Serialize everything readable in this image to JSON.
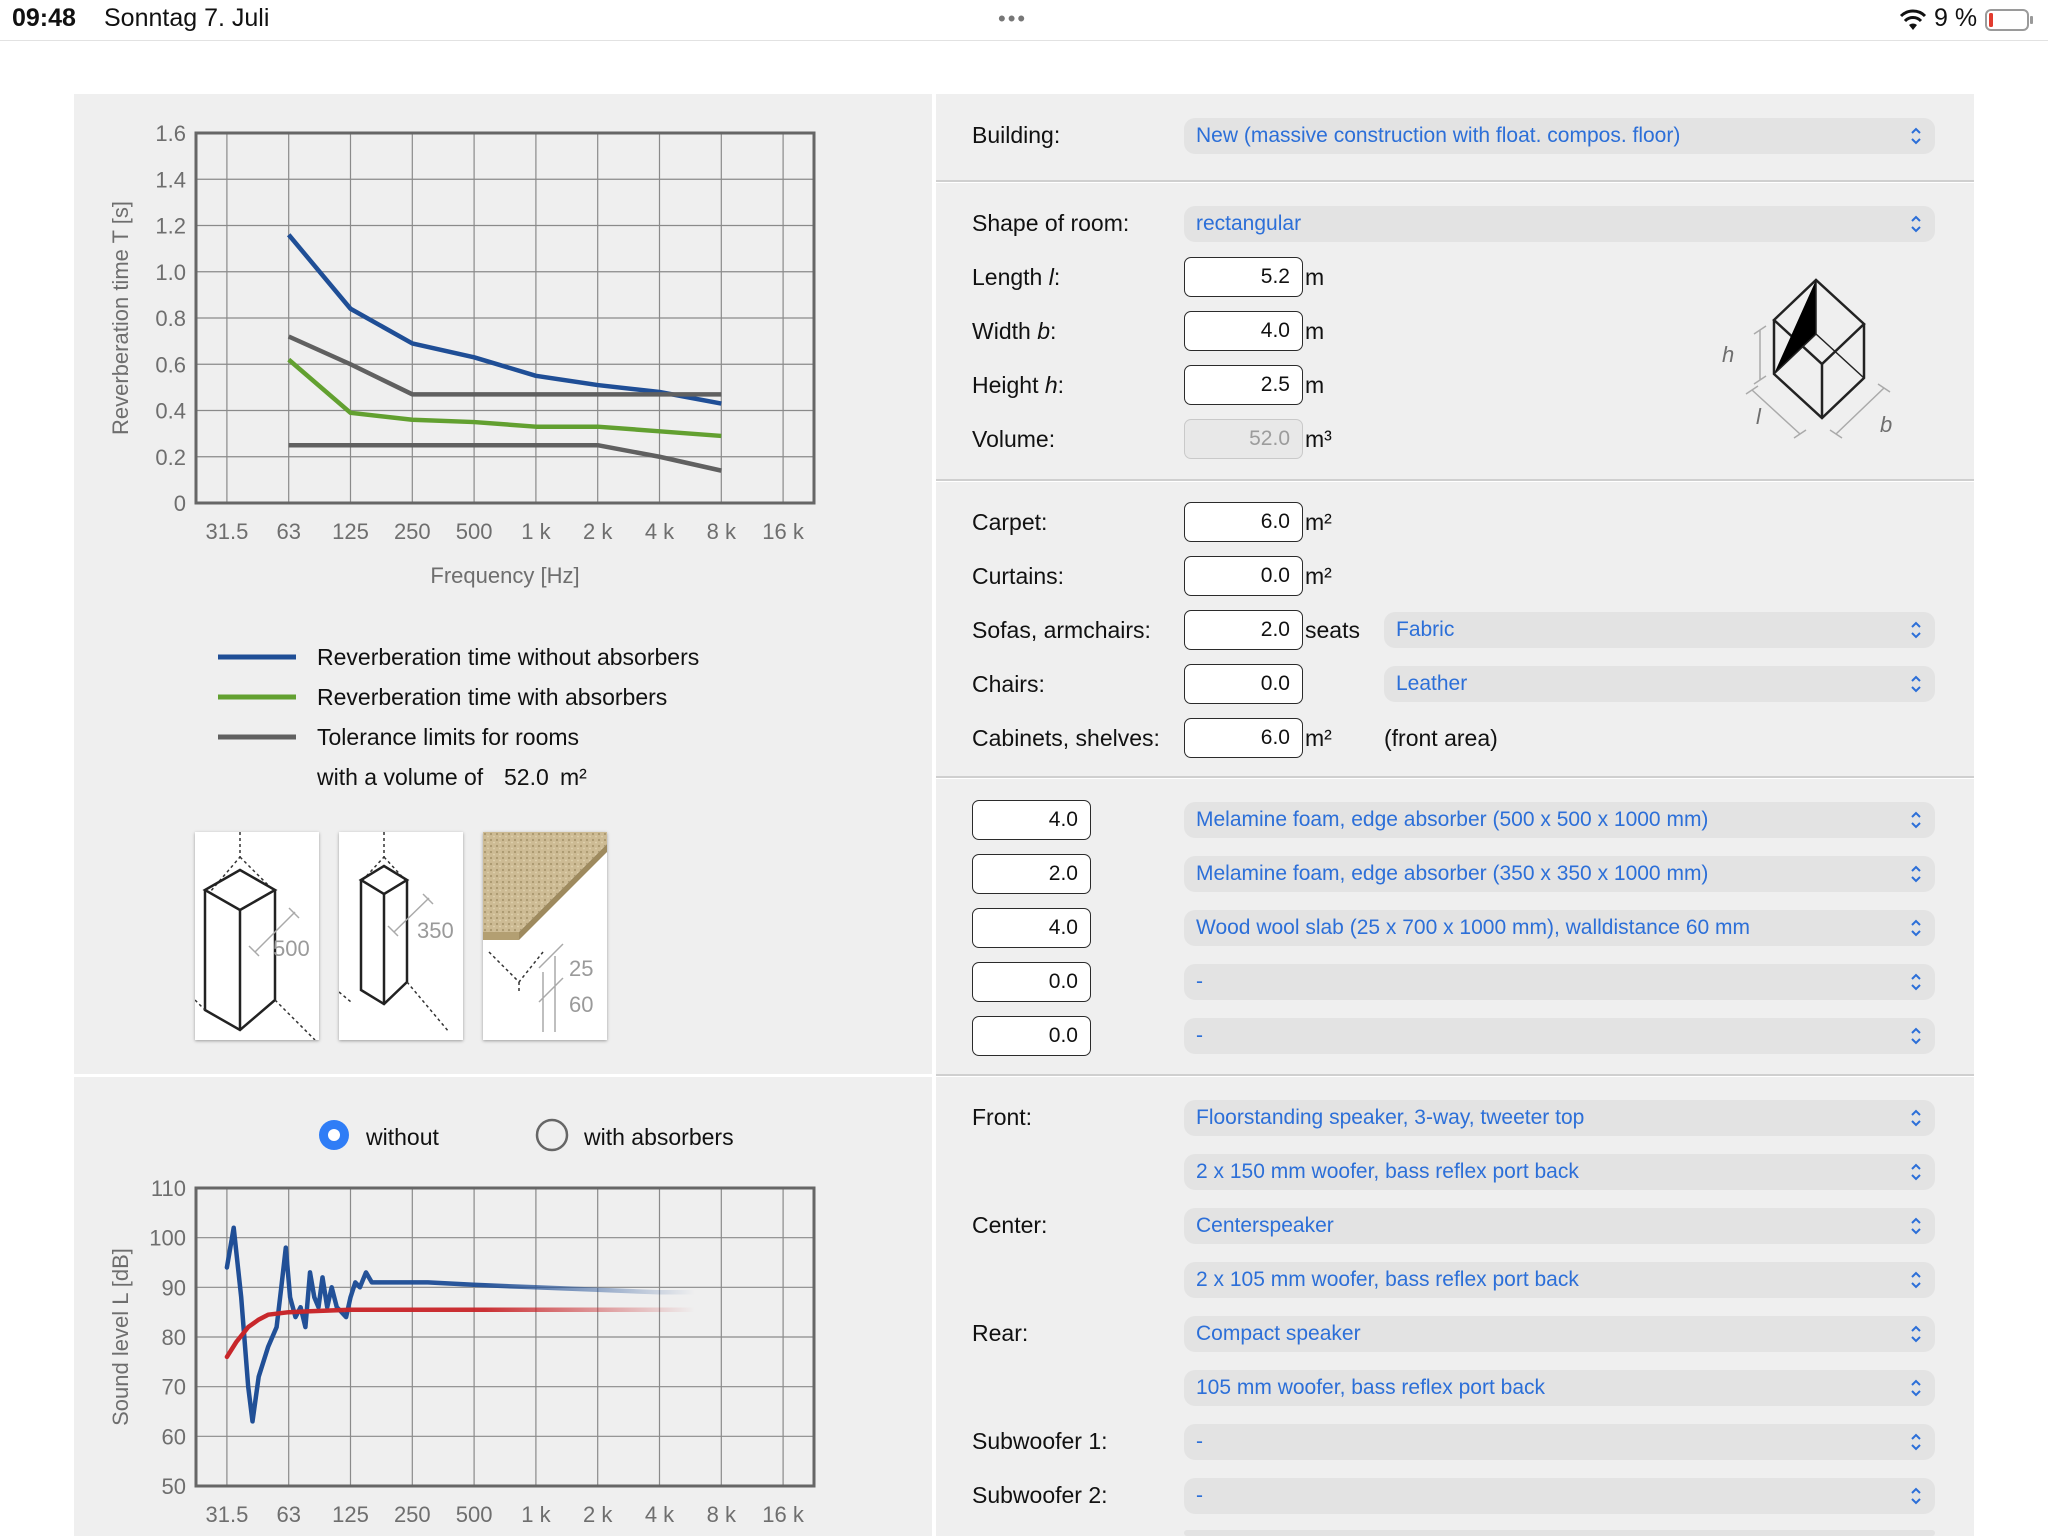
{
  "statusbar": {
    "time": "09:48",
    "date": "Sonntag 7. Juli",
    "battery": "9 %"
  },
  "chart_data": [
    {
      "type": "line",
      "x": [
        "31.5",
        "63",
        "125",
        "250",
        "500",
        "1 k",
        "2 k",
        "4 k",
        "8 k",
        "16 k"
      ],
      "xlabel": "Frequency [Hz]",
      "ylabel": "Reverberation time T [s]",
      "ylim": [
        0,
        1.6
      ],
      "yticks": [
        "0",
        "0.2",
        "0.4",
        "0.6",
        "0.8",
        "1.0",
        "1.2",
        "1.4",
        "1.6"
      ],
      "grid": true,
      "series": [
        {
          "name": "Reverberation time without absorbers",
          "color": "#1f4e96",
          "x": [
            "63",
            "125",
            "250",
            "500",
            "1 k",
            "2 k",
            "4 k",
            "8 k"
          ],
          "values": [
            1.16,
            0.84,
            0.69,
            0.63,
            0.55,
            0.51,
            0.48,
            0.43
          ]
        },
        {
          "name": "Reverberation time with absorbers",
          "color": "#62a030",
          "x": [
            "63",
            "125",
            "250",
            "500",
            "1 k",
            "2 k",
            "4 k",
            "8 k"
          ],
          "values": [
            0.62,
            0.39,
            0.36,
            0.35,
            0.33,
            0.33,
            0.31,
            0.29
          ]
        },
        {
          "name": "Tolerance limits for rooms",
          "color": "#606060",
          "x": [
            "63",
            "125",
            "250",
            "500",
            "1 k",
            "2 k",
            "4 k",
            "8 k"
          ],
          "values": [
            0.72,
            0.6,
            0.47,
            0.47,
            0.47,
            0.47,
            0.47,
            0.47
          ]
        },
        {
          "name": "Tolerance limits for rooms",
          "color": "#606060",
          "x": [
            "63",
            "125",
            "250",
            "500",
            "1 k",
            "2 k",
            "4 k",
            "8 k"
          ],
          "values": [
            0.25,
            0.25,
            0.25,
            0.25,
            0.25,
            0.25,
            0.2,
            0.14
          ]
        }
      ]
    },
    {
      "type": "line",
      "x": [
        "31.5",
        "63",
        "125",
        "250",
        "500",
        "1 k",
        "2 k",
        "4 k",
        "8 k",
        "16 k"
      ],
      "xlabel": "Frequency [Hz]",
      "ylabel": "Sound level L [dB]",
      "ylim": [
        50,
        110
      ],
      "yticks": [
        "50",
        "60",
        "70",
        "80",
        "90",
        "100",
        "110"
      ],
      "grid": true,
      "series": [
        {
          "name": "without",
          "color": "#1f4e96",
          "points": [
            [
              31.5,
              94
            ],
            [
              34,
              102
            ],
            [
              37,
              88
            ],
            [
              40,
              70
            ],
            [
              42,
              63
            ],
            [
              45,
              72
            ],
            [
              50,
              78
            ],
            [
              55,
              82
            ],
            [
              58,
              90
            ],
            [
              61,
              98
            ],
            [
              64,
              88
            ],
            [
              68,
              84
            ],
            [
              72,
              86
            ],
            [
              76,
              82
            ],
            [
              80,
              93
            ],
            [
              84,
              88
            ],
            [
              88,
              86
            ],
            [
              92,
              92
            ],
            [
              97,
              86
            ],
            [
              102,
              90
            ],
            [
              108,
              86
            ],
            [
              114,
              85
            ],
            [
              120,
              84
            ],
            [
              126,
              88
            ],
            [
              133,
              91
            ],
            [
              140,
              90
            ],
            [
              150,
              93
            ],
            [
              160,
              91
            ],
            [
              180,
              91
            ],
            [
              220,
              91
            ],
            [
              300,
              91
            ],
            [
              500,
              90.5
            ],
            [
              1000,
              90
            ],
            [
              2000,
              89.5
            ],
            [
              4000,
              89
            ],
            [
              6000,
              89
            ]
          ]
        },
        {
          "name": "with absorbers",
          "color": "#c8262a",
          "points": [
            [
              31.5,
              76
            ],
            [
              35,
              79
            ],
            [
              40,
              82
            ],
            [
              45,
              83.5
            ],
            [
              50,
              84.5
            ],
            [
              63,
              85
            ],
            [
              80,
              85.2
            ],
            [
              125,
              85.5
            ],
            [
              250,
              85.5
            ],
            [
              500,
              85.5
            ],
            [
              1000,
              85.5
            ],
            [
              2000,
              85.5
            ],
            [
              4000,
              85.5
            ],
            [
              6000,
              85.5
            ]
          ]
        }
      ]
    }
  ],
  "legend": {
    "without": "Reverberation time without absorbers",
    "with": "Reverberation time with absorbers",
    "tolerance": "Tolerance limits for rooms",
    "volume_prefix": "with a volume of",
    "volume_value": "52.0",
    "volume_unit": "m²"
  },
  "thumbs": {
    "t1_label": "500",
    "t2_label": "350",
    "t3_label1": "25",
    "t3_label2": "60"
  },
  "radio": {
    "without": "without",
    "with": "with absorbers",
    "selected": "without"
  },
  "building": {
    "label": "Building:",
    "value": "New (massive construction with float. compos. floor)"
  },
  "room": {
    "shape_label": "Shape of room:",
    "shape_value": "rectangular",
    "length_label": "Length",
    "length_var": "l",
    "length_value": "5.2",
    "width_label": "Width",
    "width_var": "b",
    "width_value": "4.0",
    "height_label": "Height",
    "height_var": "h",
    "height_value": "2.5",
    "volume_label": "Volume:",
    "volume_value": "52.0",
    "unit_m": "m",
    "unit_m3": "m³",
    "diagram_h": "h",
    "diagram_l": "l",
    "diagram_b": "b"
  },
  "furniture": {
    "carpet_label": "Carpet:",
    "carpet_value": "6.0",
    "curtains_label": "Curtains:",
    "curtains_value": "0.0",
    "sofas_label": "Sofas, armchairs:",
    "sofas_value": "2.0",
    "sofas_unit": "seats",
    "sofas_material": "Fabric",
    "chairs_label": "Chairs:",
    "chairs_value": "0.0",
    "chairs_material": "Leather",
    "cabinets_label": "Cabinets, shelves:",
    "cabinets_value": "6.0",
    "cabinets_note": "(front area)",
    "unit_m2": "m²"
  },
  "absorbers": [
    {
      "qty": "4.0",
      "type": "Melamine foam, edge absorber (500 x 500 x 1000 mm)"
    },
    {
      "qty": "2.0",
      "type": "Melamine foam, edge absorber (350 x 350 x 1000 mm)"
    },
    {
      "qty": "4.0",
      "type": "Wood wool slab (25 x 700 x 1000 mm), walldistance 60 mm"
    },
    {
      "qty": "0.0",
      "type": "-"
    },
    {
      "qty": "0.0",
      "type": "-"
    }
  ],
  "speakers": {
    "front_label": "Front:",
    "front_type": "Floorstanding speaker, 3-way, tweeter top",
    "front_woofer": "2 x 150 mm woofer, bass reflex port back",
    "center_label": "Center:",
    "center_type": "Centerspeaker",
    "center_woofer": "2 x 105 mm woofer, bass reflex port back",
    "rear_label": "Rear:",
    "rear_type": "Compact speaker",
    "rear_woofer": "105 mm woofer, bass reflex port back",
    "sub1_label": "Subwoofer 1:",
    "sub1_value": "-",
    "sub2_label": "Subwoofer 2:",
    "sub2_value": "-"
  }
}
